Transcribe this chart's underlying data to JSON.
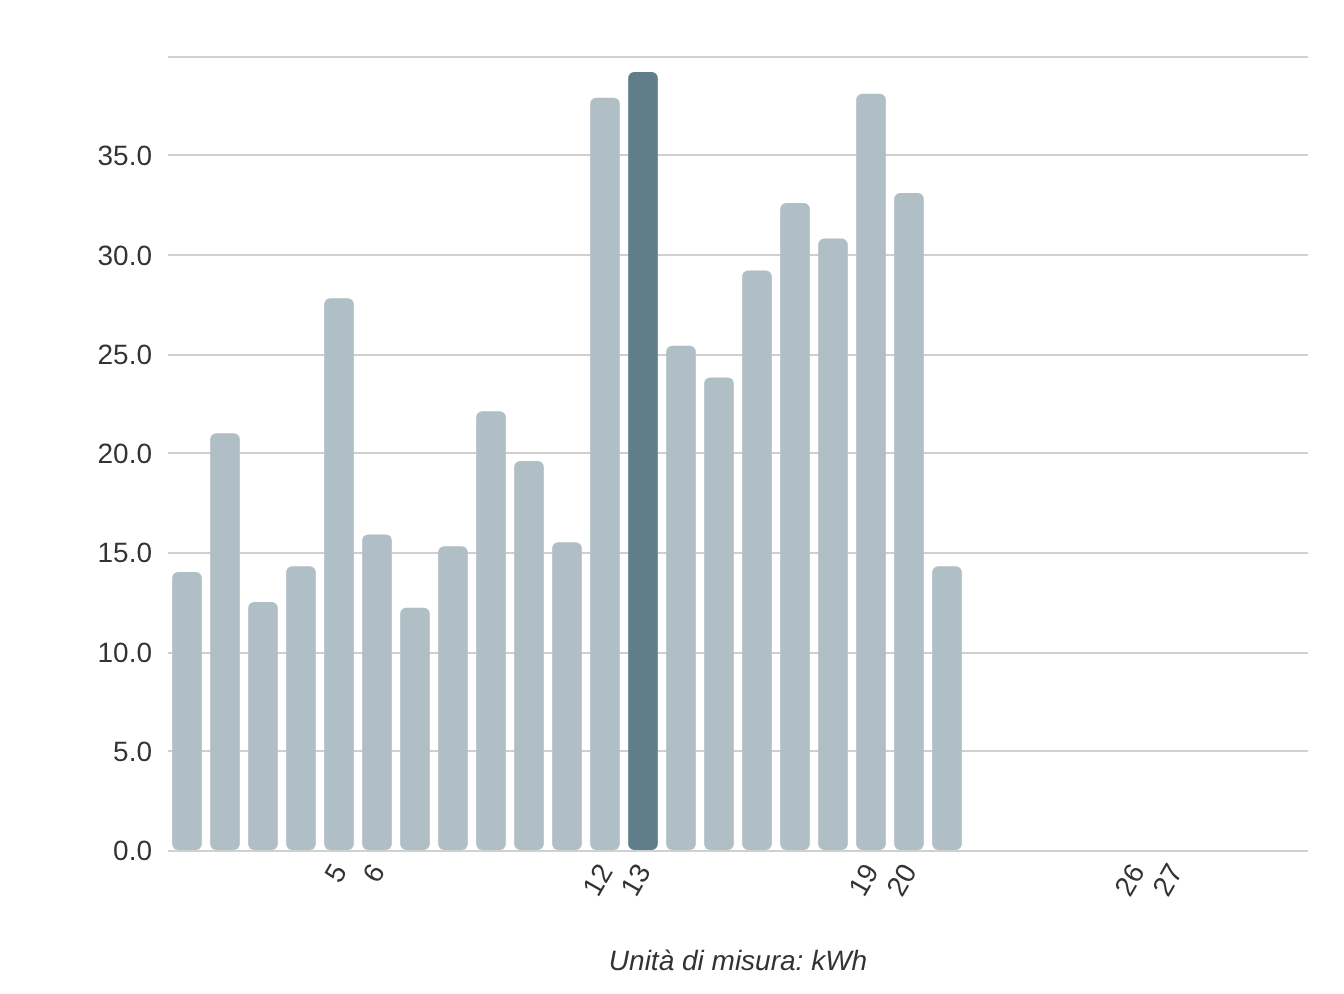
{
  "chart_data": {
    "type": "bar",
    "xlabel": "Unità di misura: kWh",
    "categories": [
      null,
      null,
      null,
      null,
      "5",
      "6",
      null,
      null,
      null,
      null,
      null,
      "12",
      "13",
      null,
      null,
      null,
      null,
      null,
      "19",
      "20",
      null,
      null,
      null,
      null,
      null,
      "26",
      "27",
      null,
      null,
      null
    ],
    "values": [
      14.0,
      21.0,
      12.5,
      14.3,
      27.8,
      15.9,
      12.2,
      15.3,
      22.1,
      19.6,
      15.5,
      37.9,
      39.2,
      25.4,
      23.8,
      29.2,
      32.6,
      30.8,
      38.1,
      33.1,
      14.3,
      null,
      null,
      null,
      null,
      null,
      null,
      null,
      null,
      null
    ],
    "colors": [
      "#b0bec5",
      "#b0bec5",
      "#b0bec5",
      "#b0bec5",
      "#b0bec5",
      "#b0bec5",
      "#b0bec5",
      "#b0bec5",
      "#b0bec5",
      "#b0bec5",
      "#b0bec5",
      "#b0bec5",
      "#607d8b",
      "#b0bec5",
      "#b0bec5",
      "#b0bec5",
      "#b0bec5",
      "#b0bec5",
      "#b0bec5",
      "#b0bec5",
      "#b0bec5",
      "#b0bec5",
      "#b0bec5",
      "#b0bec5",
      "#b0bec5",
      "#b0bec5",
      "#b0bec5",
      "#b0bec5",
      "#b0bec5",
      "#b0bec5"
    ],
    "ylim": [
      0,
      40
    ],
    "yticks": [
      {
        "value": 0,
        "label": "0.0"
      },
      {
        "value": 5,
        "label": "5.0"
      },
      {
        "value": 10,
        "label": "10.0"
      },
      {
        "value": 15,
        "label": "15.0"
      },
      {
        "value": 20,
        "label": "20.0"
      },
      {
        "value": 25,
        "label": "25.0"
      },
      {
        "value": 30,
        "label": "30.0"
      },
      {
        "value": 35,
        "label": "35.0"
      },
      {
        "value": 40,
        "label": null
      }
    ],
    "grid": "y"
  }
}
